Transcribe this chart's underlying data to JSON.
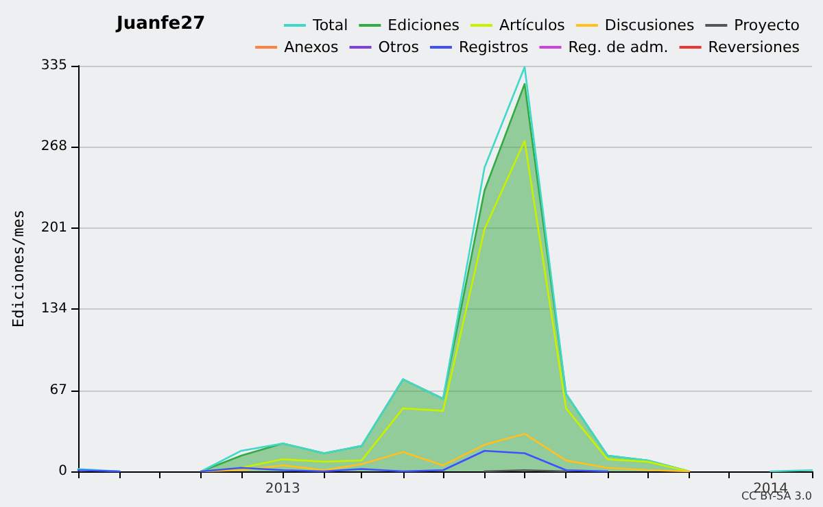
{
  "chart_data": {
    "type": "line",
    "title": "Juanfe27",
    "ylabel": "Ediciones/mes",
    "annotations": [
      "CC BY-SA 3.0"
    ],
    "x": [
      "2012-08",
      "2012-09",
      "2012-10",
      "2012-11",
      "2012-12",
      "2013-01",
      "2013-02",
      "2013-03",
      "2013-04",
      "2013-05",
      "2013-06",
      "2013-07",
      "2013-08",
      "2013-09",
      "2013-10",
      "2013-11",
      "2013-12",
      "2014-01",
      "2014-02"
    ],
    "xlim": [
      "2012-08",
      "2014-02"
    ],
    "xticks": [
      {
        "value": "2012-08",
        "label": null
      },
      {
        "value": "2012-09",
        "label": null
      },
      {
        "value": "2012-10",
        "label": null
      },
      {
        "value": "2012-11",
        "label": null
      },
      {
        "value": "2012-12",
        "label": null
      },
      {
        "value": "2013-01",
        "label": "2013"
      },
      {
        "value": "2013-02",
        "label": null
      },
      {
        "value": "2013-03",
        "label": null
      },
      {
        "value": "2013-04",
        "label": null
      },
      {
        "value": "2013-05",
        "label": null
      },
      {
        "value": "2013-06",
        "label": null
      },
      {
        "value": "2013-07",
        "label": null
      },
      {
        "value": "2013-08",
        "label": null
      },
      {
        "value": "2013-09",
        "label": null
      },
      {
        "value": "2013-10",
        "label": null
      },
      {
        "value": "2013-11",
        "label": null
      },
      {
        "value": "2013-12",
        "label": null
      },
      {
        "value": "2014-01",
        "label": "2014"
      },
      {
        "value": "2014-02",
        "label": null
      }
    ],
    "ylim": [
      0,
      335
    ],
    "yticks": [
      0,
      67,
      134,
      201,
      268,
      335
    ],
    "grid": "y",
    "legend": "top right",
    "marker": "none",
    "line_style": "solid",
    "series": [
      {
        "name": "Total",
        "color": "#40d8c8",
        "values": [
          2,
          0,
          null,
          0,
          17,
          23,
          15,
          21,
          76,
          60,
          251,
          334,
          64,
          13,
          9,
          0,
          null,
          0,
          1
        ]
      },
      {
        "name": "Ediciones",
        "color": "#33aa44",
        "type": "area",
        "values": [
          null,
          null,
          null,
          0,
          13,
          23,
          15,
          21,
          76,
          60,
          232,
          320,
          64,
          13,
          9,
          0,
          null,
          null,
          null
        ]
      },
      {
        "name": "Artículos",
        "color": "#c8f000",
        "values": [
          null,
          null,
          null,
          0,
          3,
          10,
          8,
          9,
          52,
          50,
          200,
          273,
          52,
          10,
          8,
          0,
          null,
          null,
          null
        ]
      },
      {
        "name": "Discusiones",
        "color": "#ffc020",
        "values": [
          null,
          null,
          null,
          0,
          1,
          5,
          1,
          6,
          16,
          5,
          22,
          31,
          9,
          3,
          1,
          0,
          null,
          null,
          null
        ]
      },
      {
        "name": "Proyecto",
        "color": "#555555",
        "values": [
          null,
          null,
          null,
          null,
          null,
          null,
          null,
          null,
          null,
          null,
          0,
          1,
          0,
          null,
          null,
          null,
          null,
          null,
          null
        ]
      },
      {
        "name": "Anexos",
        "color": "#ff8040",
        "values": [
          null,
          null,
          null,
          null,
          null,
          null,
          null,
          null,
          null,
          null,
          null,
          null,
          null,
          null,
          null,
          null,
          null,
          null,
          null
        ]
      },
      {
        "name": "Otros",
        "color": "#8040e0",
        "values": [
          null,
          null,
          null,
          null,
          null,
          null,
          null,
          null,
          null,
          null,
          null,
          null,
          null,
          null,
          null,
          null,
          null,
          null,
          null
        ]
      },
      {
        "name": "Registros",
        "color": "#4050ff",
        "values": [
          1,
          0,
          null,
          0,
          3,
          1,
          0,
          2,
          0,
          1,
          17,
          15,
          1,
          0,
          null,
          null,
          null,
          null,
          null
        ]
      },
      {
        "name": "Reg. de adm.",
        "color": "#cc44dd",
        "values": [
          null,
          null,
          null,
          null,
          null,
          null,
          null,
          null,
          null,
          null,
          null,
          null,
          null,
          null,
          null,
          null,
          null,
          null,
          null
        ]
      },
      {
        "name": "Reversiones",
        "color": "#ee3333",
        "values": [
          null,
          null,
          null,
          null,
          null,
          null,
          null,
          null,
          null,
          null,
          null,
          null,
          null,
          null,
          null,
          null,
          null,
          null,
          null
        ]
      }
    ]
  }
}
